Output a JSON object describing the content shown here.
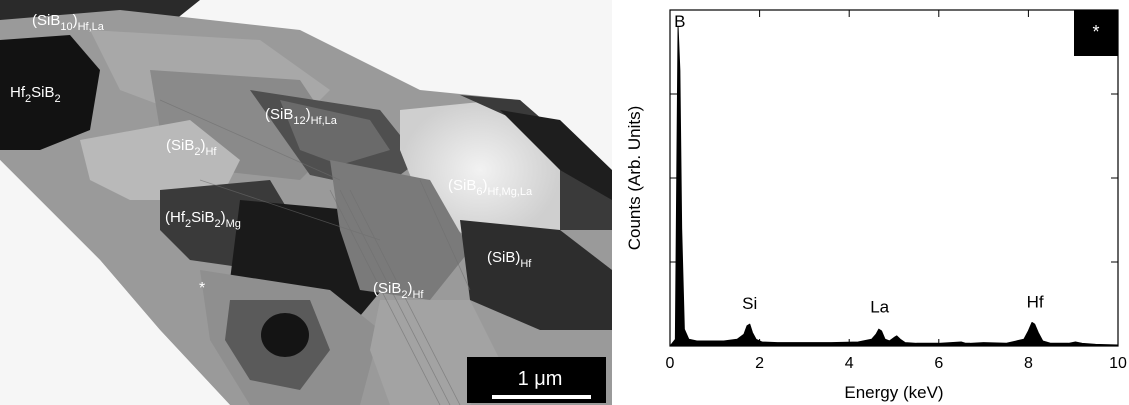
{
  "micrograph": {
    "labels": [
      {
        "base": "(SiB",
        "sub1": "10",
        "mid": ")",
        "sub2": "Hf,La"
      },
      {
        "base": "Hf",
        "sub1": "2",
        "mid": "SiB",
        "sub2": "2"
      },
      {
        "base": "(SiB",
        "sub1": "12",
        "mid": ")",
        "sub2": "Hf,La"
      },
      {
        "base": "(SiB",
        "sub1": "2",
        "mid": ")",
        "sub2": "Hf"
      },
      {
        "base": "(SiB",
        "sub1": "6",
        "mid": ")",
        "sub2": "Hf,Mg,La"
      },
      {
        "base": "(Hf",
        "sub1": "2",
        "mid": "SiB",
        "sub2": "2",
        "tail": ")",
        "sub3": "Mg"
      },
      {
        "base": "(SiB)",
        "sub1": "",
        "mid": "",
        "sub2": "Hf"
      },
      {
        "base": "(SiB",
        "sub1": "2",
        "mid": ")",
        "sub2": "Hf"
      }
    ],
    "marker": "*",
    "scale_bar_label": "1 μm"
  },
  "chart_data": {
    "type": "line",
    "title": "",
    "xlabel": "Energy (keV)",
    "ylabel": "Counts (Arb. Units)",
    "xlim": [
      0,
      10
    ],
    "ylim": [
      0,
      1
    ],
    "x_ticks": [
      0,
      2,
      4,
      6,
      8,
      10
    ],
    "x_tick_labels": [
      "0",
      "2",
      "4",
      "6",
      "8",
      "10"
    ],
    "y_ticks": [
      0.25,
      0.5,
      0.75
    ],
    "grid": false,
    "legend_box": "*",
    "series": [
      {
        "x": [
          0,
          0.12,
          0.18,
          0.22,
          0.26,
          0.32,
          0.42,
          0.6,
          0.9,
          1.2,
          1.5,
          1.65,
          1.72,
          1.78,
          1.84,
          1.92,
          2.05,
          2.4,
          3.0,
          3.6,
          4.2,
          4.5,
          4.6,
          4.66,
          4.72,
          4.8,
          4.9,
          5.0,
          5.06,
          5.14,
          5.25,
          5.5,
          6.0,
          6.5,
          6.6,
          6.7,
          7.0,
          7.5,
          7.9,
          8.0,
          8.08,
          8.14,
          8.22,
          8.32,
          8.5,
          8.9,
          9.05,
          9.2,
          9.5,
          10.0
        ],
        "y": [
          0,
          0.02,
          0.95,
          0.82,
          0.35,
          0.05,
          0.02,
          0.015,
          0.015,
          0.015,
          0.02,
          0.035,
          0.06,
          0.065,
          0.04,
          0.02,
          0.012,
          0.01,
          0.01,
          0.01,
          0.012,
          0.02,
          0.035,
          0.05,
          0.045,
          0.02,
          0.015,
          0.025,
          0.03,
          0.02,
          0.01,
          0.008,
          0.008,
          0.012,
          0.008,
          0.008,
          0.01,
          0.008,
          0.02,
          0.045,
          0.07,
          0.065,
          0.04,
          0.015,
          0.008,
          0.008,
          0.012,
          0.008,
          0.005,
          0.003
        ]
      }
    ],
    "peak_labels": [
      {
        "text": "B",
        "x": 0.22,
        "y": 0.95
      },
      {
        "text": "Si",
        "x": 1.78,
        "y": 0.11
      },
      {
        "text": "La",
        "x": 4.68,
        "y": 0.1
      },
      {
        "text": "Hf",
        "x": 8.15,
        "y": 0.115
      }
    ]
  }
}
